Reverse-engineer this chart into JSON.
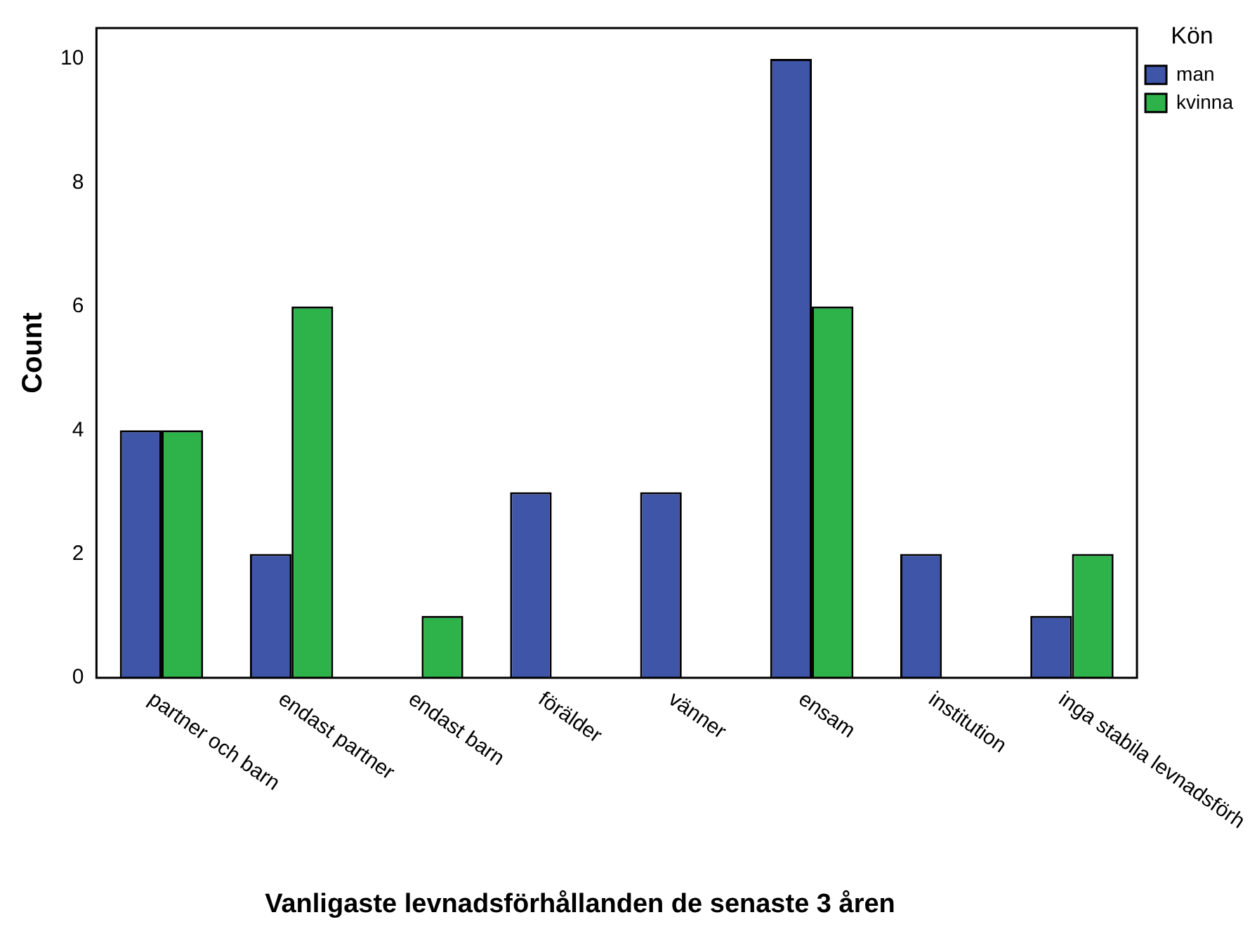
{
  "chart_data": {
    "type": "bar",
    "xlabel": "Vanligaste levnadsförhållanden de senaste 3 åren",
    "ylabel": "Count",
    "legend_title": "Kön",
    "legend": "top right",
    "grid": false,
    "categories": [
      "partner och barn",
      "endast partner",
      "endast barn",
      "förälder",
      "vänner",
      "ensam",
      "institution",
      "inga stabila levnadsförh"
    ],
    "series": [
      {
        "name": "man",
        "color": "#3f55a8",
        "values": [
          4,
          2,
          0,
          3,
          3,
          10,
          2,
          1
        ]
      },
      {
        "name": "kvinna",
        "color": "#2db34a",
        "values": [
          4,
          6,
          1,
          0,
          0,
          6,
          0,
          2
        ]
      }
    ],
    "ylim": [
      0,
      10.5
    ],
    "yticks": [
      0,
      2,
      4,
      6,
      8,
      10
    ]
  }
}
